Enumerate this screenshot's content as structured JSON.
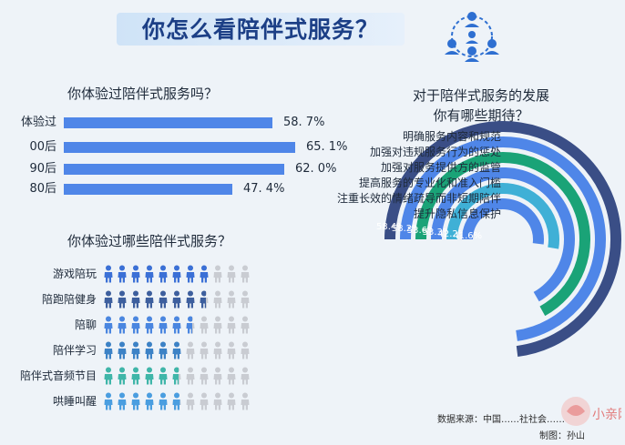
{
  "page": {
    "title": "你怎么看陪伴式服务？",
    "source": "数据来源：中国……社社会……",
    "credit": "制图：孙山",
    "watermark_text": "小亲网"
  },
  "colors": {
    "primary": "#4f86e8",
    "dark": "#2d4c8c",
    "green": "#1aa377",
    "teal": "#3fb0d6",
    "grey": "#c9ccd2",
    "title": "#1c3f86"
  },
  "chart_data": [
    {
      "type": "bar",
      "title": "你体验过陪伴式服务吗？",
      "categories": [
        "体验过",
        "00后",
        "90后",
        "80后"
      ],
      "values": [
        58.7,
        65.1,
        62.0,
        47.4
      ],
      "value_labels": [
        "58. 7%",
        "65. 1%",
        "62. 0%",
        "47. 4%"
      ],
      "xlim": [
        0,
        100
      ]
    },
    {
      "type": "bar",
      "title": "你体验过哪些陪伴式服务？",
      "categories": [
        "游戏陪玩",
        "陪跑陪健身",
        "陪聊",
        "陪伴学习",
        "陪伴式音频节目",
        "哄睡叫醒"
      ],
      "values": [
        8.0,
        7.6,
        6.6,
        5.9,
        5.6,
        5.7
      ],
      "unit": "icons out of 11 shown",
      "total_icons": 11,
      "colors": [
        "#3b70d6",
        "#3d5f9e",
        "#4a86e0",
        "#3c82c6",
        "#3fb6a9",
        "#4a9ee0"
      ]
    },
    {
      "type": "radial-bar",
      "title": "对于陪伴式服务的发展\n你有哪些期待？",
      "categories": [
        "明确服务内容和规范",
        "加强对违规服务行为的惩处",
        "加强对服务提供方的监管",
        "提高服务的专业化和准入门槛",
        "注重长效的情绪疏导而非短期陪伴",
        "提升隐私信息保护"
      ],
      "values": [
        58.4,
        58.2,
        53.6,
        53.3,
        42.2,
        41.6
      ],
      "value_labels": [
        "58.4%",
        "58.2%",
        "53.6%",
        "53.3%",
        "42.2%",
        "41.6%"
      ],
      "colors": [
        "#3a4e86",
        "#4f86e8",
        "#1aa377",
        "#4f86e8",
        "#3fb0d6",
        "#4f86e8"
      ]
    }
  ]
}
